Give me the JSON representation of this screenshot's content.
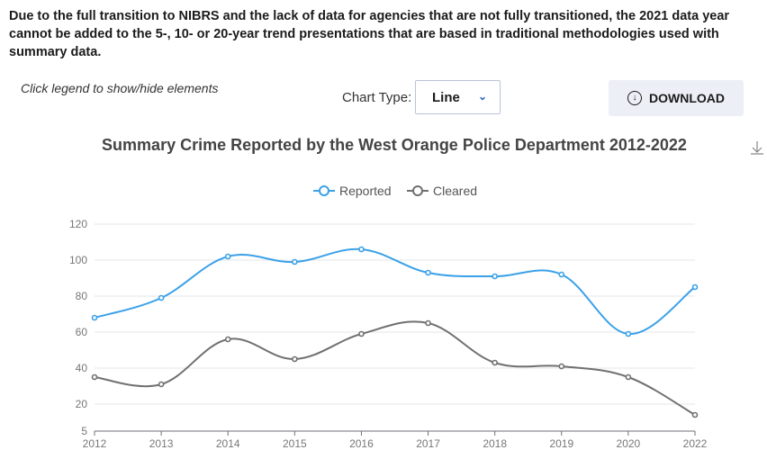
{
  "notice": "Due to the full transition to NIBRS and the lack of data for agencies that are not fully transitioned, the 2021 data year cannot be added to the 5-, 10- or 20-year trend presentations that are based in traditional methodologies used with summary data.",
  "hint": "Click legend to show/hide elements",
  "chart_type_label": "Chart Type:",
  "chart_type_value": "Line",
  "download_label": "DOWNLOAD",
  "colors": {
    "reported": "#3ba1e8",
    "cleared": "#707070"
  },
  "chart_data": {
    "type": "line",
    "title": "Summary Crime Reported by the West Orange Police Department 2012-2022",
    "categories": [
      "2012",
      "2013",
      "2014",
      "2015",
      "2016",
      "2017",
      "2018",
      "2019",
      "2020",
      "2022"
    ],
    "yticks": [
      "5",
      "20",
      "40",
      "60",
      "80",
      "100",
      "120"
    ],
    "ylim": [
      5,
      120
    ],
    "legend_position": "top-center",
    "series": [
      {
        "name": "Reported",
        "values": [
          68,
          79,
          102,
          99,
          106,
          93,
          91,
          92,
          59,
          85
        ]
      },
      {
        "name": "Cleared",
        "values": [
          35,
          31,
          56,
          45,
          59,
          65,
          43,
          41,
          35,
          14
        ]
      }
    ]
  }
}
